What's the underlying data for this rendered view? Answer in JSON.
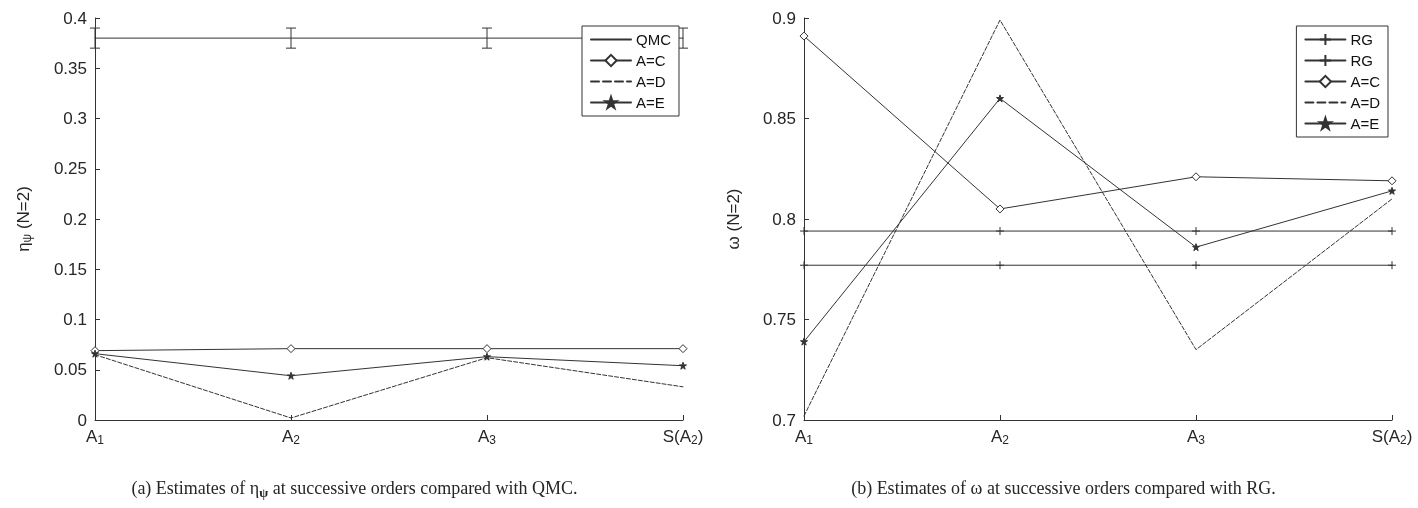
{
  "chart_data": [
    {
      "type": "line",
      "title": "(a) Estimates of η$_{ψ}$ at successive orders compared with QMC.",
      "ylabel": "η$_{ψ}$ (N=2)",
      "categories": [
        "A$_{1}$",
        "A$_{2}$",
        "A$_{3}$",
        "S(A$_{2}$)"
      ],
      "ylim": [
        0,
        0.4
      ],
      "yticks": [
        0,
        0.05,
        0.1,
        0.15,
        0.2,
        0.25,
        0.3,
        0.35,
        0.4
      ],
      "grid": false,
      "legend": "top right",
      "series": [
        {
          "name": "QMC",
          "color": "#333333",
          "marker": "none",
          "line_style": "solid",
          "values": [
            0.38,
            0.38,
            0.38,
            0.38
          ],
          "errors": [
            0.01,
            0.01,
            0.01,
            0.01
          ]
        },
        {
          "name": "A=C",
          "color": "#333333",
          "marker": "diamond",
          "line_style": "solid",
          "values": [
            0.069,
            0.071,
            0.071,
            0.071
          ]
        },
        {
          "name": "A=D",
          "color": "#333333",
          "marker": "none",
          "line_style": "dashed",
          "values": [
            0.065,
            0.002,
            0.062,
            0.033
          ]
        },
        {
          "name": "A=E",
          "color": "#333333",
          "marker": "star",
          "line_style": "solid",
          "values": [
            0.066,
            0.044,
            0.063,
            0.054
          ]
        }
      ]
    },
    {
      "type": "line",
      "title": "(b) Estimates of ω at successive orders compared with RG.",
      "ylabel": "ω (N=2)",
      "categories": [
        "A$_{1}$",
        "A$_{2}$",
        "A$_{3}$",
        "S(A$_{2}$)"
      ],
      "ylim": [
        0.7,
        0.9
      ],
      "yticks": [
        0.7,
        0.75,
        0.8,
        0.85,
        0.9
      ],
      "grid": false,
      "legend": "top right",
      "series": [
        {
          "name": "RG",
          "color": "#333333",
          "marker": "cross",
          "line_style": "solid",
          "values": [
            0.794,
            0.794,
            0.794,
            0.794
          ]
        },
        {
          "name": "RG",
          "color": "#333333",
          "marker": "cross",
          "line_style": "solid",
          "values": [
            0.777,
            0.777,
            0.777,
            0.777
          ]
        },
        {
          "name": "A=C",
          "color": "#333333",
          "marker": "diamond",
          "line_style": "solid",
          "values": [
            0.891,
            0.805,
            0.821,
            0.819
          ]
        },
        {
          "name": "A=D",
          "color": "#333333",
          "marker": "none",
          "line_style": "dashed",
          "values": [
            0.702,
            0.899,
            0.735,
            0.81
          ]
        },
        {
          "name": "A=E",
          "color": "#333333",
          "marker": "star",
          "line_style": "solid",
          "values": [
            0.739,
            0.86,
            0.786,
            0.814
          ]
        }
      ]
    }
  ]
}
